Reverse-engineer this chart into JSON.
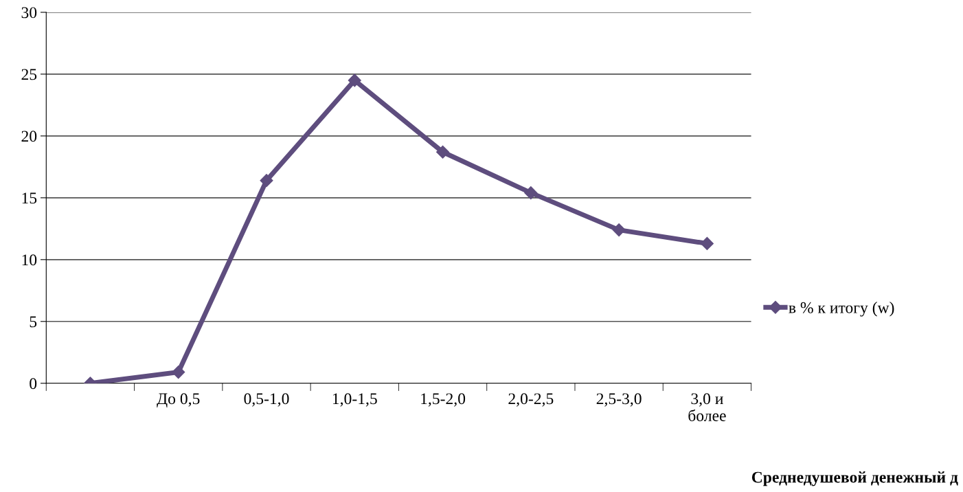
{
  "chart_data": {
    "type": "line",
    "xlabel": "Среднедушевой денежный д",
    "categories": [
      null,
      "До 0,5",
      "0,5-1,0",
      "1,0-1,5",
      "1,5-2,0",
      "2,0-2,5",
      "2,5-3,0",
      "3,0 и\nболее"
    ],
    "series": [
      {
        "name": "в % к итогу (w)",
        "color": "#5e4d7e",
        "values": [
          0,
          0.9,
          16.4,
          24.5,
          18.7,
          15.4,
          12.4,
          11.3
        ]
      }
    ],
    "ylim": [
      0,
      30
    ],
    "yticks": [
      0,
      5,
      10,
      15,
      20,
      25,
      30
    ],
    "grid": "y",
    "legend": "right",
    "marker": "diamond",
    "line_style": "solid"
  }
}
